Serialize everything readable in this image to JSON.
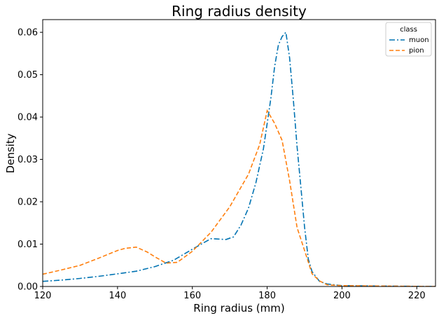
{
  "chart_data": {
    "type": "line",
    "title": "Ring radius density",
    "xlabel": "Ring radius (mm)",
    "ylabel": "Density",
    "xlim": [
      120,
      225
    ],
    "ylim": [
      0,
      0.063
    ],
    "xticks": [
      120,
      140,
      160,
      180,
      200,
      220
    ],
    "yticks": [
      0.0,
      0.01,
      0.02,
      0.03,
      0.04,
      0.05,
      0.06
    ],
    "ytick_labels": [
      "0.00",
      "0.01",
      "0.02",
      "0.03",
      "0.04",
      "0.05",
      "0.06"
    ],
    "grid": false,
    "legend": {
      "title": "class",
      "placement": "top-right"
    },
    "series": [
      {
        "name": "muon",
        "color": "#0173b2",
        "dash": "dashdot",
        "x": [
          120,
          125,
          130,
          135,
          140,
          145,
          150,
          155,
          160,
          163,
          165,
          167,
          169,
          171,
          173,
          175,
          177,
          179,
          180,
          181,
          182,
          183,
          184,
          185,
          186,
          187,
          188,
          189,
          190,
          191,
          192,
          194,
          196,
          200,
          210,
          225
        ],
        "y": [
          0.0012,
          0.0015,
          0.0019,
          0.0024,
          0.003,
          0.0036,
          0.0047,
          0.0062,
          0.0088,
          0.0103,
          0.0113,
          0.0112,
          0.0111,
          0.0117,
          0.0145,
          0.0185,
          0.0245,
          0.0325,
          0.0385,
          0.0445,
          0.052,
          0.057,
          0.059,
          0.06,
          0.054,
          0.044,
          0.033,
          0.0235,
          0.014,
          0.0065,
          0.0035,
          0.0012,
          0.0006,
          0.0002,
          0.0001,
          0.0
        ]
      },
      {
        "name": "pion",
        "color": "#ff7f0e",
        "dash": "dashed",
        "x": [
          120,
          125,
          130,
          135,
          140,
          142,
          145,
          148,
          150,
          153,
          156,
          160,
          165,
          170,
          175,
          178,
          180,
          182,
          184,
          186,
          188,
          190,
          192,
          194,
          196,
          200,
          210,
          225
        ],
        "y": [
          0.0029,
          0.0039,
          0.005,
          0.0067,
          0.0085,
          0.009,
          0.0093,
          0.0081,
          0.007,
          0.0055,
          0.0057,
          0.0083,
          0.0128,
          0.0188,
          0.0265,
          0.0335,
          0.0415,
          0.0385,
          0.0345,
          0.025,
          0.0139,
          0.0085,
          0.003,
          0.0013,
          0.0004,
          0.0002,
          0.0001,
          0.0
        ]
      }
    ]
  }
}
